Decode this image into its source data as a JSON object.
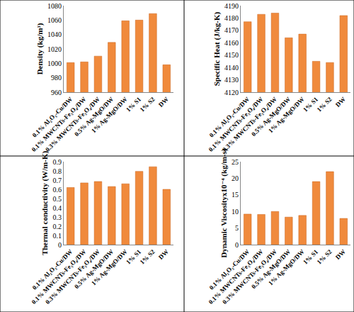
{
  "chart_data": [
    {
      "type": "bar",
      "y_label": "Density (kg/m³)",
      "categories": [
        "0.1% Al₂O₃-Cu/DW",
        "0.1% MWCNTs-Fe₃O₄/DW",
        "0.3% MWCNTs-Fe₃O₄/DW",
        "0.5% Ag-MgO/DW",
        "1% Ag-MgO/DW",
        "1% S1",
        "1% S2",
        "DW"
      ],
      "values": [
        1001,
        1002,
        1010,
        1029,
        1059,
        1060,
        1069,
        998
      ],
      "color": "#f08a3c",
      "ylim": [
        960,
        1080
      ],
      "yticks": [
        960,
        980,
        1000,
        1020,
        1040,
        1060,
        1080
      ],
      "grid": false
    },
    {
      "type": "bar",
      "y_label": "Specific Heat (J/kg-K)",
      "categories": [
        "0.1% Al₂O₃-Cu/DW",
        "0.1% MWCNTs-Fe₃O₄/DW",
        "0.3% MWCNTs-Fe₃O₄/DW",
        "0.5% Ag-MgO/DW",
        "1% Ag-MgO/DW",
        "1% S1",
        "1% S2",
        "DW"
      ],
      "values": [
        4177,
        4183,
        4184,
        4164,
        4167,
        4145,
        4144,
        4182
      ],
      "color": "#f08a3c",
      "ylim": [
        4120,
        4190
      ],
      "yticks": [
        4120,
        4130,
        4140,
        4150,
        4160,
        4170,
        4180,
        4190
      ],
      "grid": false
    },
    {
      "type": "bar",
      "y_label": "Thermal conductivity (W/m-K)",
      "categories": [
        "0.1% Al₂O₃-Cu/DW",
        "0.1% MWCNTs-Fe₃O₄/DW",
        "0.3% MWCNTs-Fe₃O₄/DW",
        "0.5% Ag-MgO/DW",
        "1% Ag-MgO/DW",
        "1% S1",
        "1% S2",
        "DW"
      ],
      "values": [
        0.62,
        0.67,
        0.685,
        0.63,
        0.66,
        0.795,
        0.845,
        0.6
      ],
      "color": "#f08a3c",
      "ylim": [
        0,
        0.9
      ],
      "yticks": [
        0,
        0.1,
        0.2,
        0.3,
        0.4,
        0.5,
        0.6,
        0.7,
        0.8,
        0.9
      ],
      "grid": false
    },
    {
      "type": "bar",
      "y_label": "Dynamic Viscosityx10⁻⁴ (kg/m-s)",
      "categories": [
        "0.1% Al₂O₃-Cu/DW",
        "0.1% MWCNTs-Fe₃O₄/DW",
        "0.3% MWCNTs-Fe₃O₄/DW",
        "0.5% Ag-MgO/DW",
        "1% Ag-MgO/DW",
        "1% S1",
        "1% S2",
        "DW"
      ],
      "values": [
        9.2,
        9.1,
        10.0,
        8.3,
        8.8,
        19,
        22,
        7.9
      ],
      "color": "#f08a3c",
      "ylim": [
        0,
        25
      ],
      "yticks": [
        0,
        5,
        10,
        15,
        20,
        25
      ],
      "grid": false
    }
  ]
}
